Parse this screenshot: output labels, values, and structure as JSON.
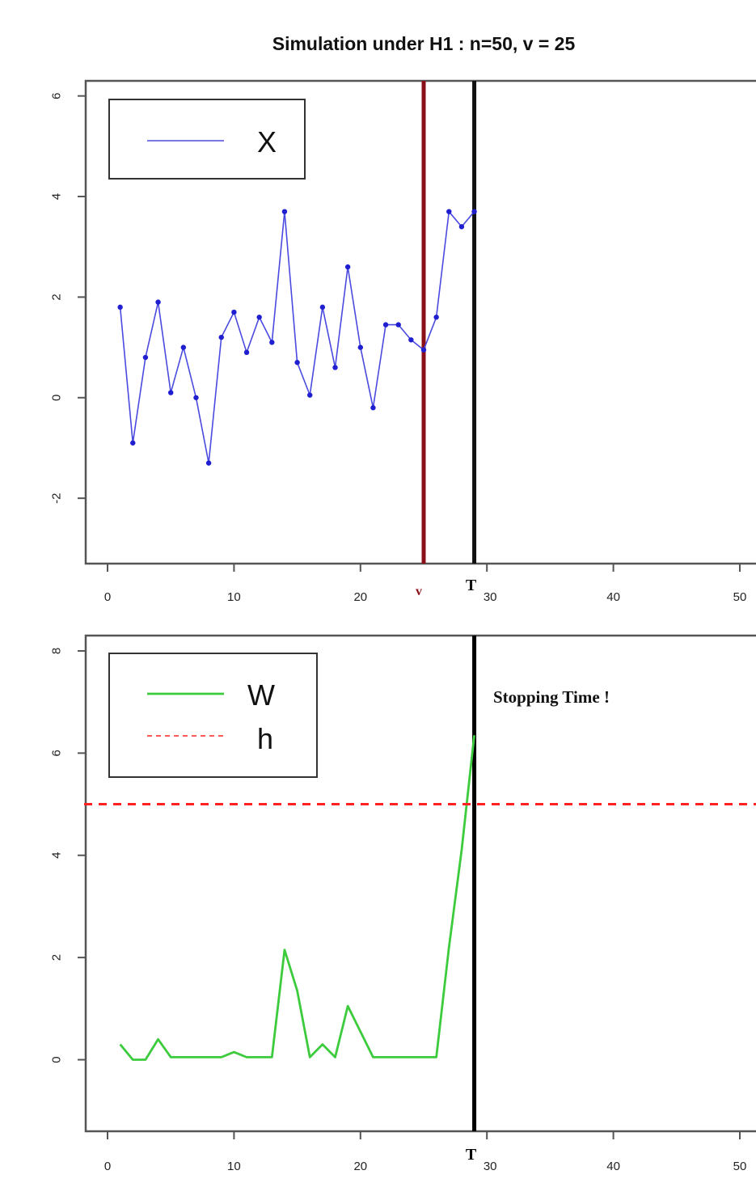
{
  "chart_data": [
    {
      "type": "line",
      "title": "Simulation under H1 : n=50, v = 25",
      "xlim": [
        0,
        50
      ],
      "ylim": [
        -3.3,
        6.3
      ],
      "xticks": [
        0,
        10,
        20,
        30,
        40,
        50
      ],
      "yticks": [
        -2,
        0,
        2,
        4,
        6
      ],
      "series": [
        {
          "name": "X",
          "color": "#4a4ae0",
          "x": [
            1,
            2,
            3,
            4,
            5,
            6,
            7,
            8,
            9,
            10,
            11,
            12,
            13,
            14,
            15,
            16,
            17,
            18,
            19,
            20,
            21,
            22,
            23,
            24,
            25,
            26,
            27,
            28,
            29
          ],
          "y": [
            1.8,
            -0.9,
            0.8,
            1.9,
            0.1,
            1.0,
            0.0,
            -1.3,
            1.2,
            1.7,
            0.9,
            1.6,
            1.1,
            3.7,
            0.7,
            0.05,
            1.8,
            0.6,
            2.6,
            1.0,
            -0.2,
            1.45,
            1.45,
            1.15,
            0.95,
            1.6,
            3.7,
            3.4,
            3.7
          ]
        }
      ],
      "vlines": [
        {
          "x": 25,
          "label": "v",
          "color": "#8b0f18"
        },
        {
          "x": 29,
          "label": "T",
          "color": "#111111"
        }
      ]
    },
    {
      "type": "line",
      "title": "",
      "xlim": [
        0,
        50
      ],
      "ylim": [
        -1.4,
        8.3
      ],
      "xticks": [
        0,
        10,
        20,
        30,
        40,
        50
      ],
      "yticks": [
        0,
        2,
        4,
        6,
        8
      ],
      "series": [
        {
          "name": "W",
          "color": "#3ccb3c",
          "x": [
            1,
            2,
            3,
            4,
            5,
            6,
            7,
            8,
            9,
            10,
            11,
            12,
            13,
            14,
            15,
            16,
            17,
            18,
            19,
            20,
            21,
            22,
            23,
            24,
            25,
            26,
            27,
            28,
            29
          ],
          "y": [
            0.3,
            0.0,
            0.0,
            0.4,
            0.05,
            0.05,
            0.05,
            0.05,
            0.05,
            0.15,
            0.05,
            0.05,
            0.05,
            2.15,
            1.35,
            0.05,
            0.3,
            0.05,
            1.05,
            0.55,
            0.05,
            0.05,
            0.05,
            0.05,
            0.05,
            0.05,
            2.2,
            4.1,
            6.35
          ]
        },
        {
          "name": "h",
          "color": "#ff2222",
          "style": "dashed",
          "y": 5
        }
      ],
      "vlines": [
        {
          "x": 29,
          "label": "T",
          "color": "#000000"
        }
      ],
      "annotation": "Stopping Time !"
    }
  ]
}
